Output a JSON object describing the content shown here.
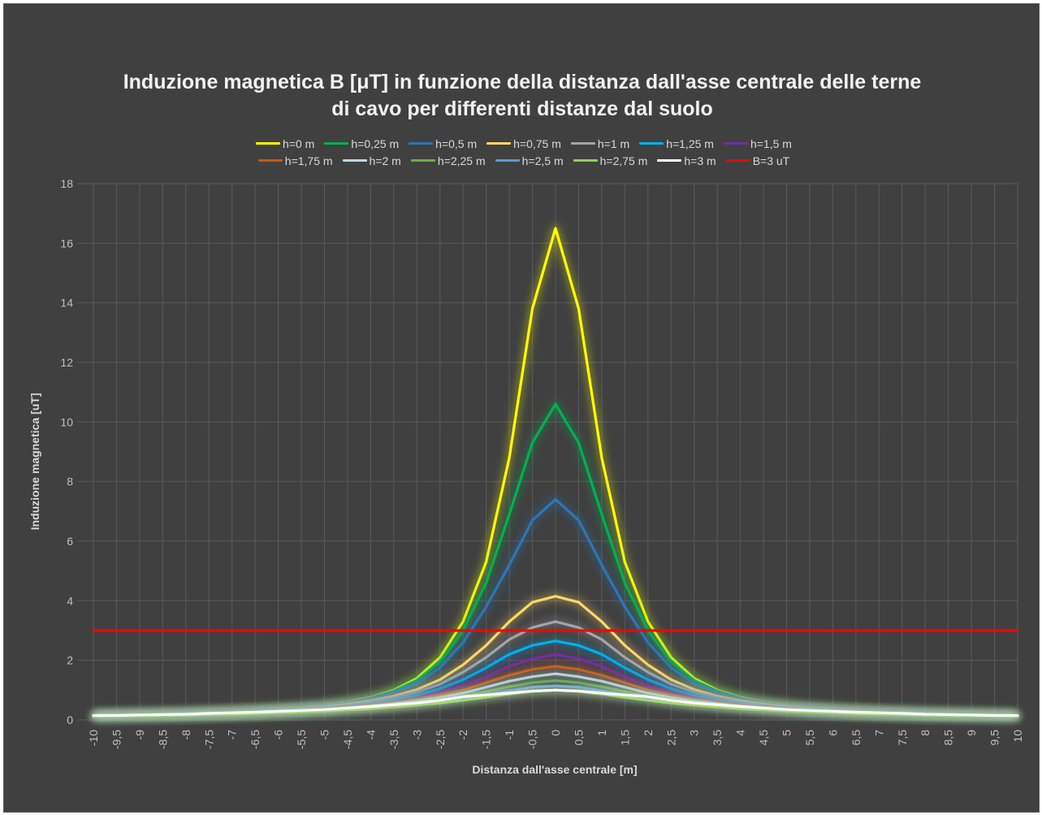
{
  "chart_data": {
    "type": "line",
    "title_line1": "Induzione magnetica B [μT] in funzione della distanza dall'asse centrale delle terne",
    "title_line2": "di cavo per differenti distanze dal suolo",
    "xlabel": "Distanza dall'asse centrale [m]",
    "ylabel": "Induzione magnetica [uT]",
    "ylim": [
      0,
      18
    ],
    "y_ticks": [
      "0",
      "2",
      "4",
      "6",
      "8",
      "10",
      "12",
      "14",
      "16",
      "18"
    ],
    "x": [
      -10,
      -9.5,
      -9,
      -8.5,
      -8,
      -7.5,
      -7,
      -6.5,
      -6,
      -5.5,
      -5,
      -4.5,
      -4,
      -3.5,
      -3,
      -2.5,
      -2,
      -1.5,
      -1,
      -0.5,
      0,
      0.5,
      1,
      1.5,
      2,
      2.5,
      3,
      3.5,
      4,
      4.5,
      5,
      5.5,
      6,
      6.5,
      7,
      7.5,
      8,
      8.5,
      9,
      9.5,
      10
    ],
    "x_tick_labels": [
      "-10",
      "-9,5",
      "-9",
      "-8,5",
      "-8",
      "-7,5",
      "-7",
      "-6,5",
      "-6",
      "-5,5",
      "-5",
      "-4,5",
      "-4",
      "-3,5",
      "-3",
      "-2,5",
      "-2",
      "-1,5",
      "-1",
      "-0,5",
      "0",
      "0,5",
      "1",
      "1,5",
      "2",
      "2,5",
      "3",
      "3,5",
      "4",
      "4,5",
      "5",
      "5,5",
      "6",
      "6,5",
      "7",
      "7,5",
      "8",
      "8,5",
      "9",
      "9,5",
      "10"
    ],
    "grid": true,
    "legend_position": "top",
    "series": [
      {
        "name": "h=0 m",
        "color": "#ffff00",
        "values": [
          0.12,
          0.14,
          0.15,
          0.17,
          0.19,
          0.22,
          0.25,
          0.29,
          0.34,
          0.4,
          0.49,
          0.6,
          0.76,
          1.0,
          1.4,
          2.1,
          3.3,
          5.3,
          8.8,
          13.8,
          16.5,
          13.8,
          8.8,
          5.3,
          3.3,
          2.1,
          1.4,
          1.0,
          0.76,
          0.6,
          0.49,
          0.4,
          0.34,
          0.29,
          0.25,
          0.22,
          0.19,
          0.17,
          0.15,
          0.14,
          0.12
        ]
      },
      {
        "name": "h=0,25 m",
        "color": "#00b050",
        "values": [
          0.12,
          0.14,
          0.15,
          0.17,
          0.19,
          0.22,
          0.25,
          0.29,
          0.34,
          0.4,
          0.48,
          0.59,
          0.74,
          0.97,
          1.32,
          1.95,
          3.0,
          4.6,
          6.9,
          9.3,
          10.6,
          9.3,
          6.9,
          4.6,
          3.0,
          1.95,
          1.32,
          0.97,
          0.74,
          0.59,
          0.48,
          0.4,
          0.34,
          0.29,
          0.25,
          0.22,
          0.19,
          0.17,
          0.15,
          0.14,
          0.12
        ]
      },
      {
        "name": "h=0,5 m",
        "color": "#2e75b6",
        "values": [
          0.12,
          0.14,
          0.15,
          0.17,
          0.19,
          0.22,
          0.25,
          0.28,
          0.33,
          0.39,
          0.47,
          0.57,
          0.71,
          0.92,
          1.23,
          1.75,
          2.6,
          3.8,
          5.2,
          6.7,
          7.4,
          6.7,
          5.2,
          3.8,
          2.6,
          1.75,
          1.23,
          0.92,
          0.71,
          0.57,
          0.47,
          0.39,
          0.33,
          0.28,
          0.25,
          0.22,
          0.19,
          0.17,
          0.15,
          0.14,
          0.12
        ]
      },
      {
        "name": "h=0,75 m",
        "color": "#ffd966",
        "values": [
          0.12,
          0.14,
          0.15,
          0.17,
          0.19,
          0.21,
          0.24,
          0.28,
          0.32,
          0.37,
          0.44,
          0.53,
          0.64,
          0.8,
          1.02,
          1.35,
          1.85,
          2.5,
          3.3,
          3.95,
          4.15,
          3.95,
          3.3,
          2.5,
          1.85,
          1.35,
          1.02,
          0.8,
          0.64,
          0.53,
          0.44,
          0.37,
          0.32,
          0.28,
          0.24,
          0.21,
          0.19,
          0.17,
          0.15,
          0.14,
          0.12
        ]
      },
      {
        "name": "h=1 m",
        "color": "#a6a6a6",
        "values": [
          0.12,
          0.13,
          0.15,
          0.16,
          0.18,
          0.21,
          0.23,
          0.27,
          0.31,
          0.36,
          0.42,
          0.5,
          0.6,
          0.74,
          0.93,
          1.2,
          1.6,
          2.1,
          2.7,
          3.1,
          3.3,
          3.1,
          2.7,
          2.1,
          1.6,
          1.2,
          0.93,
          0.74,
          0.6,
          0.5,
          0.42,
          0.36,
          0.31,
          0.27,
          0.23,
          0.21,
          0.18,
          0.16,
          0.15,
          0.13,
          0.12
        ]
      },
      {
        "name": "h=1,25 m",
        "color": "#00b0f0",
        "values": [
          0.12,
          0.13,
          0.15,
          0.16,
          0.18,
          0.2,
          0.23,
          0.26,
          0.3,
          0.34,
          0.4,
          0.47,
          0.56,
          0.68,
          0.84,
          1.05,
          1.35,
          1.75,
          2.2,
          2.5,
          2.65,
          2.5,
          2.2,
          1.75,
          1.35,
          1.05,
          0.84,
          0.68,
          0.56,
          0.47,
          0.4,
          0.34,
          0.3,
          0.26,
          0.23,
          0.2,
          0.18,
          0.16,
          0.15,
          0.13,
          0.12
        ]
      },
      {
        "name": "h=1,5 m",
        "color": "#7030a0",
        "values": [
          0.12,
          0.13,
          0.14,
          0.16,
          0.18,
          0.2,
          0.22,
          0.25,
          0.29,
          0.33,
          0.38,
          0.44,
          0.52,
          0.62,
          0.75,
          0.93,
          1.15,
          1.45,
          1.8,
          2.05,
          2.2,
          2.05,
          1.8,
          1.45,
          1.15,
          0.93,
          0.75,
          0.62,
          0.52,
          0.44,
          0.38,
          0.33,
          0.29,
          0.25,
          0.22,
          0.2,
          0.18,
          0.16,
          0.14,
          0.13,
          0.12
        ]
      },
      {
        "name": "h=1,75 m",
        "color": "#c55a11",
        "values": [
          0.12,
          0.13,
          0.14,
          0.16,
          0.17,
          0.19,
          0.22,
          0.24,
          0.28,
          0.31,
          0.36,
          0.42,
          0.49,
          0.57,
          0.68,
          0.83,
          1.0,
          1.25,
          1.5,
          1.7,
          1.8,
          1.7,
          1.5,
          1.25,
          1.0,
          0.83,
          0.68,
          0.57,
          0.49,
          0.42,
          0.36,
          0.31,
          0.28,
          0.24,
          0.22,
          0.19,
          0.17,
          0.16,
          0.14,
          0.13,
          0.12
        ]
      },
      {
        "name": "h=2 m",
        "color": "#bdd7ee",
        "values": [
          0.12,
          0.13,
          0.14,
          0.15,
          0.17,
          0.19,
          0.21,
          0.24,
          0.27,
          0.3,
          0.35,
          0.4,
          0.46,
          0.54,
          0.63,
          0.75,
          0.9,
          1.1,
          1.3,
          1.45,
          1.55,
          1.45,
          1.3,
          1.1,
          0.9,
          0.75,
          0.63,
          0.54,
          0.46,
          0.4,
          0.35,
          0.3,
          0.27,
          0.24,
          0.21,
          0.19,
          0.17,
          0.15,
          0.14,
          0.13,
          0.12
        ]
      },
      {
        "name": "h=2,25 m",
        "color": "#70ad47",
        "values": [
          0.12,
          0.13,
          0.14,
          0.15,
          0.17,
          0.18,
          0.2,
          0.23,
          0.26,
          0.29,
          0.33,
          0.38,
          0.43,
          0.5,
          0.58,
          0.68,
          0.8,
          0.95,
          1.12,
          1.25,
          1.32,
          1.25,
          1.12,
          0.95,
          0.8,
          0.68,
          0.58,
          0.5,
          0.43,
          0.38,
          0.33,
          0.29,
          0.26,
          0.23,
          0.2,
          0.18,
          0.17,
          0.15,
          0.14,
          0.13,
          0.12
        ]
      },
      {
        "name": "h=2,5 m",
        "color": "#5b9bd5",
        "values": [
          0.12,
          0.13,
          0.14,
          0.15,
          0.16,
          0.18,
          0.2,
          0.22,
          0.25,
          0.28,
          0.32,
          0.36,
          0.41,
          0.47,
          0.54,
          0.62,
          0.73,
          0.85,
          0.98,
          1.1,
          1.15,
          1.1,
          0.98,
          0.85,
          0.73,
          0.62,
          0.54,
          0.47,
          0.41,
          0.36,
          0.32,
          0.28,
          0.25,
          0.22,
          0.2,
          0.18,
          0.16,
          0.15,
          0.14,
          0.13,
          0.12
        ]
      },
      {
        "name": "h=2,75 m",
        "color": "#92d050",
        "values": [
          0.12,
          0.13,
          0.14,
          0.15,
          0.16,
          0.18,
          0.19,
          0.21,
          0.24,
          0.27,
          0.3,
          0.34,
          0.38,
          0.44,
          0.5,
          0.57,
          0.66,
          0.76,
          0.87,
          0.96,
          1.0,
          0.96,
          0.87,
          0.76,
          0.66,
          0.57,
          0.5,
          0.44,
          0.38,
          0.34,
          0.3,
          0.27,
          0.24,
          0.21,
          0.19,
          0.18,
          0.16,
          0.15,
          0.14,
          0.13,
          0.12
        ]
      },
      {
        "name": "h=3 m",
        "color": "#ffffff",
        "values": [
          0.15,
          0.15,
          0.17,
          0.18,
          0.19,
          0.22,
          0.24,
          0.26,
          0.29,
          0.32,
          0.35,
          0.4,
          0.45,
          0.51,
          0.57,
          0.66,
          0.78,
          0.84,
          0.9,
          0.97,
          1.0,
          0.97,
          0.9,
          0.84,
          0.78,
          0.66,
          0.57,
          0.51,
          0.45,
          0.4,
          0.35,
          0.32,
          0.29,
          0.26,
          0.24,
          0.22,
          0.19,
          0.18,
          0.17,
          0.15,
          0.15
        ]
      },
      {
        "name": "B=3 uT",
        "color": "#ff0000",
        "values": [
          3,
          3,
          3,
          3,
          3,
          3,
          3,
          3,
          3,
          3,
          3,
          3,
          3,
          3,
          3,
          3,
          3,
          3,
          3,
          3,
          3,
          3,
          3,
          3,
          3,
          3,
          3,
          3,
          3,
          3,
          3,
          3,
          3,
          3,
          3,
          3,
          3,
          3,
          3,
          3,
          3
        ]
      }
    ],
    "legend_rows": [
      [
        0,
        1,
        2,
        3,
        4,
        5,
        6
      ],
      [
        7,
        8,
        9,
        10,
        11,
        12,
        13
      ]
    ]
  }
}
